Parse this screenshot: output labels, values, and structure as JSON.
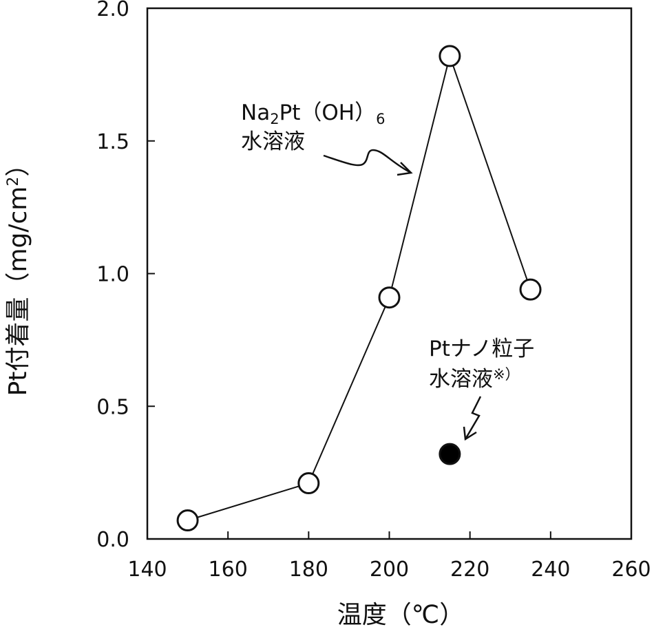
{
  "chart_data": {
    "type": "scatter",
    "xlabel": "温度（℃）",
    "ylabel": "Pt付着量（mg/cm²）",
    "ylabel_main": "Pt付着量（mg/cm",
    "ylabel_sup": "2",
    "ylabel_close": "）",
    "xlim": [
      140,
      260
    ],
    "ylim": [
      0.0,
      2.0
    ],
    "x_ticks": [
      140,
      160,
      180,
      200,
      220,
      240,
      260
    ],
    "y_ticks": [
      0.0,
      0.5,
      1.0,
      1.5,
      2.0
    ],
    "x_tick_labels": [
      "140",
      "160",
      "180",
      "200",
      "220",
      "240",
      "260"
    ],
    "y_tick_labels": [
      "0.0",
      "0.5",
      "1.0",
      "1.5",
      "2.0"
    ],
    "grid": false,
    "series": [
      {
        "marker": "open-circle",
        "line": true,
        "x": [
          150,
          180,
          200,
          215,
          235
        ],
        "y": [
          0.07,
          0.21,
          0.91,
          1.82,
          0.94
        ]
      },
      {
        "marker": "filled-circle",
        "line": false,
        "x": [
          215
        ],
        "y": [
          0.32
        ]
      }
    ],
    "annotations": [
      {
        "line1": "Na",
        "line1_sub": "2",
        "line1_mid": "Pt（OH）",
        "line1_sub2": "6",
        "line2": "水溶液"
      },
      {
        "line1": "Ptナノ粒子",
        "line2": "水溶液",
        "line2_sup": "※）"
      }
    ]
  }
}
